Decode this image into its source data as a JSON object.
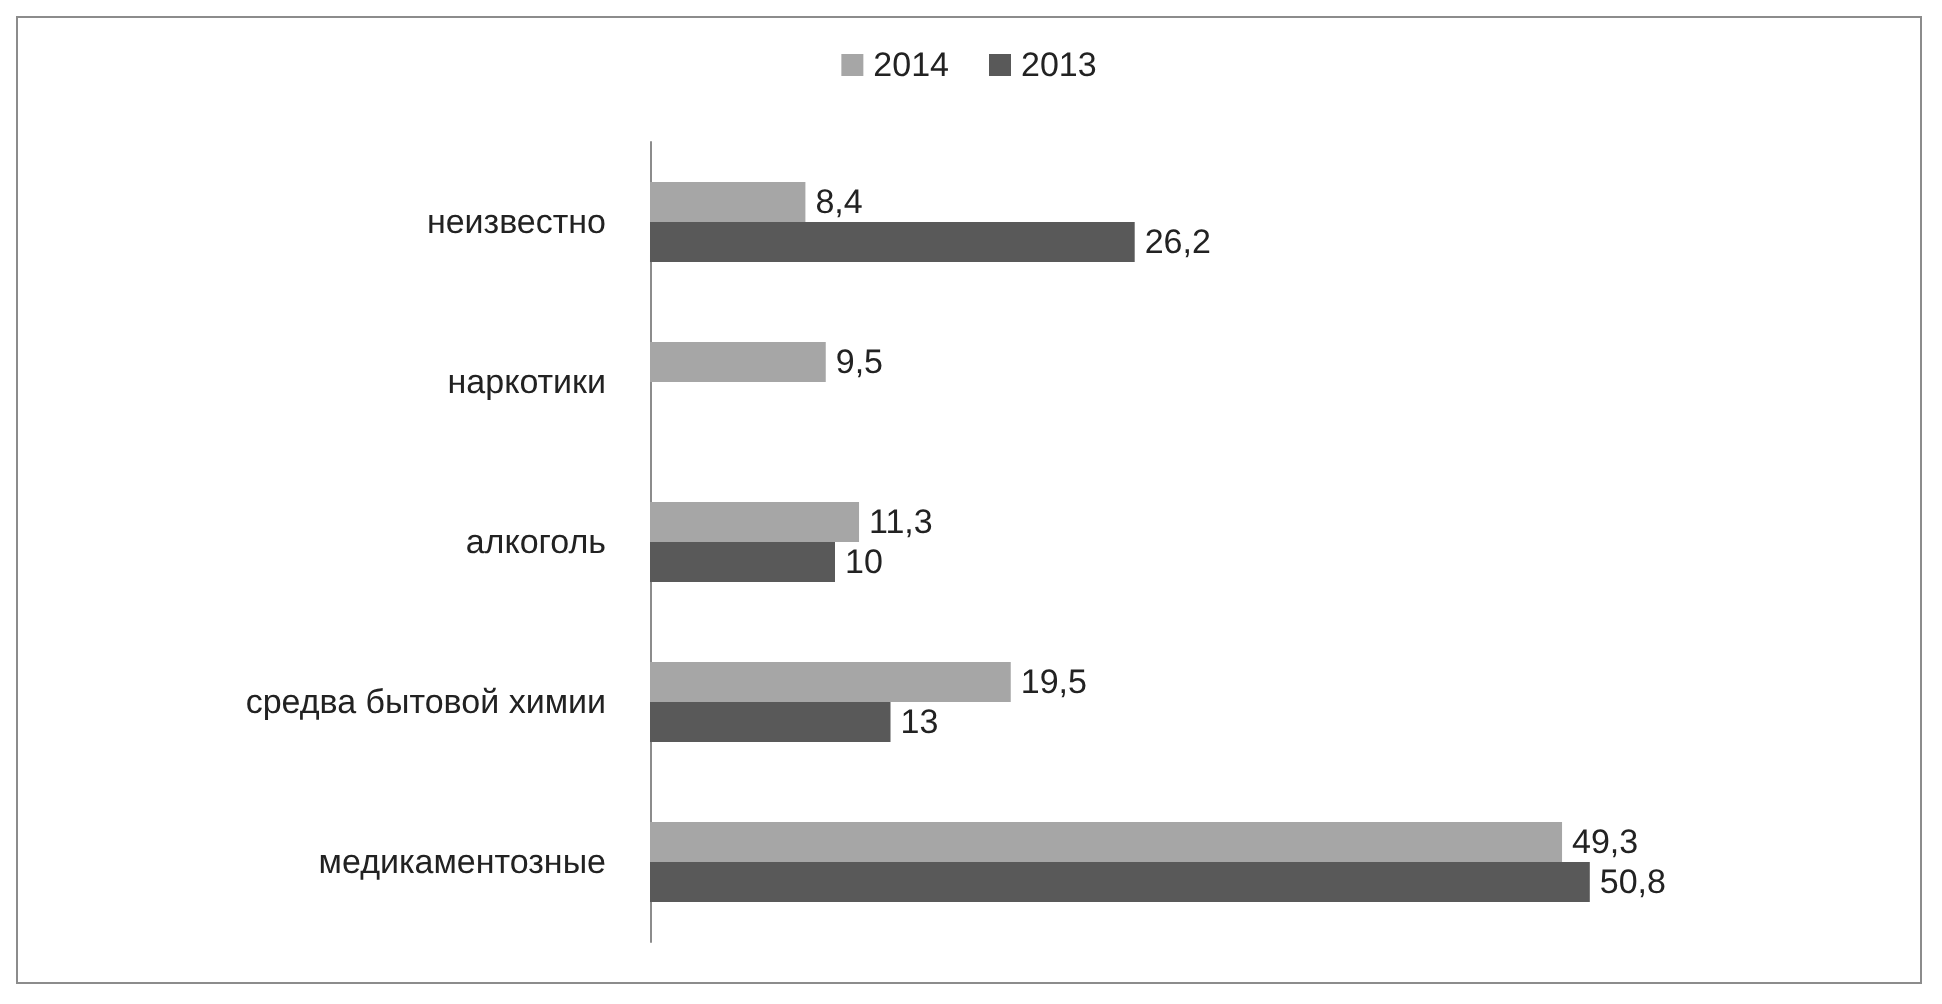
{
  "chart_data": {
    "type": "bar",
    "orientation": "horizontal",
    "categories": [
      "неизвестно",
      "наркотики",
      "алкоголь",
      "средва бытовой химии",
      "медикаментозные"
    ],
    "series": [
      {
        "name": "2014",
        "color": "#a6a6a6",
        "values": [
          8.4,
          9.5,
          11.3,
          19.5,
          49.3
        ],
        "value_labels": [
          "8,4",
          "9,5",
          "11,3",
          "19,5",
          "49,3"
        ]
      },
      {
        "name": "2013",
        "color": "#595959",
        "values": [
          26.2,
          null,
          10,
          13,
          50.8
        ],
        "value_labels": [
          "26,2",
          null,
          "10",
          "13",
          "50,8"
        ]
      }
    ],
    "legend": "top",
    "grid": false
  }
}
